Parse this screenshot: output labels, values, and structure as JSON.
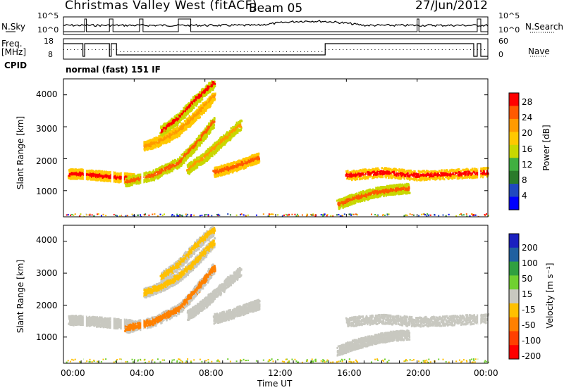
{
  "header": {
    "title": "Christmas Valley West (fitACF)",
    "beam": "Beam 05",
    "date": "27/Jun/2012"
  },
  "left_labels": {
    "nsky": "N.Sky",
    "freq": "Freq.",
    "freq_unit": "[MHz]",
    "cpid": "CPID"
  },
  "right_labels": {
    "nsearch": "N.Search",
    "nave": "Nave"
  },
  "mode_text": "normal (fast) 151 IF",
  "axes": {
    "noise_left_ticks": [
      "10^5",
      "10^0"
    ],
    "noise_right_ticks": [
      "10^5",
      "10^0"
    ],
    "freq_left_ticks": [
      "18",
      "8"
    ],
    "nave_right_ticks": [
      "60",
      "0"
    ],
    "range_label": "Slant Range [km]",
    "range_ticks": [
      "4000",
      "3000",
      "2000",
      "1000"
    ],
    "time_ticks": [
      "00:00",
      "04:00",
      "08:00",
      "12:00",
      "16:00",
      "20:00",
      "00:00"
    ],
    "time_label": "Time UT"
  },
  "colorbars": {
    "power": {
      "label": "Power [dB]",
      "ticks": [
        "28",
        "24",
        "20",
        "16",
        "12",
        "8",
        "4"
      ],
      "colors": [
        "#ff0000",
        "#ff5a00",
        "#ff9a00",
        "#ffc800",
        "#c8d800",
        "#40b040",
        "#2a7a2a",
        "#2048c0",
        "#0000ff"
      ]
    },
    "velocity": {
      "label": "Velocity [m s⁻¹]",
      "ticks": [
        "200",
        "100",
        "50",
        "15",
        "-15",
        "-50",
        "-100",
        "-200"
      ],
      "colors": [
        "#1a20c0",
        "#2060a0",
        "#30a040",
        "#70d030",
        "#c8c8c0",
        "#ffc000",
        "#ff8000",
        "#ff4000",
        "#ff0000"
      ]
    }
  },
  "chart_data": {
    "type": "heatmap",
    "x_range_hours": [
      0,
      24
    ],
    "y_range_km": [
      180,
      4500
    ],
    "power_features": [
      {
        "name": "band-a",
        "t": [
          0.3,
          1.0,
          2.0,
          3.0,
          4.0
        ],
        "r": [
          1550,
          1550,
          1500,
          1450,
          1400
        ]
      },
      {
        "name": "arc-low",
        "t": [
          3.5,
          5.0,
          6.5,
          7.5,
          8.5
        ],
        "r": [
          1300,
          1500,
          1900,
          2500,
          3200
        ]
      },
      {
        "name": "arc-mid",
        "t": [
          4.5,
          5.5,
          6.5,
          7.5,
          8.5
        ],
        "r": [
          2400,
          2600,
          2900,
          3400,
          4000
        ]
      },
      {
        "name": "arc-high",
        "t": [
          5.5,
          6.5,
          7.5,
          8.5
        ],
        "r": [
          2900,
          3300,
          3900,
          4400
        ]
      },
      {
        "name": "band-b",
        "t": [
          8.5,
          9.5,
          10.5,
          11.0
        ],
        "r": [
          1600,
          1750,
          1950,
          2050
        ]
      },
      {
        "name": "arc-c",
        "t": [
          7.0,
          8.0,
          9.0,
          10.0
        ],
        "r": [
          1700,
          2100,
          2600,
          3100
        ]
      },
      {
        "name": "late-band",
        "t": [
          16.0,
          18.0,
          20.0,
          22.0,
          24.0
        ],
        "r": [
          1500,
          1600,
          1500,
          1550,
          1600
        ]
      },
      {
        "name": "late-blob",
        "t": [
          15.5,
          16.5,
          17.5,
          18.5,
          19.5
        ],
        "r": [
          600,
          800,
          950,
          1050,
          1100
        ]
      }
    ]
  }
}
